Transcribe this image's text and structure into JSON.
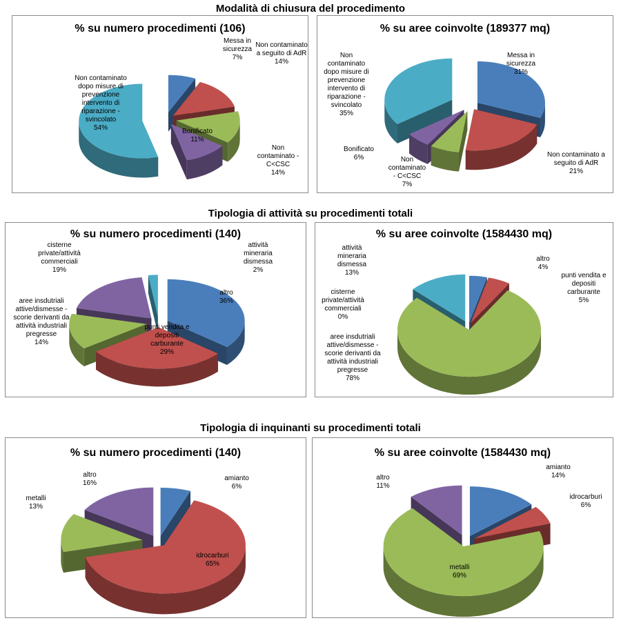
{
  "sections": {
    "s1": "Modalità di chiusura del procedimento",
    "s2": "Tipologia di attività su procedimenti totali",
    "s3": "Tipologia di inquinanti su procedimenti totali"
  },
  "chart_data": [
    {
      "type": "pie",
      "title": "% su numero procedimenti (106)",
      "slices": [
        {
          "label": "Messa in sicurezza",
          "value": 7,
          "pct": "7%",
          "color": "#4a7ebb"
        },
        {
          "label": "Non contaminato a seguito di AdR",
          "value": 14,
          "pct": "14%",
          "color": "#c0504d"
        },
        {
          "label": "Non contaminato - C<CSC",
          "value": 14,
          "pct": "14%",
          "color": "#9bbb59"
        },
        {
          "label": "Bonificato",
          "value": 11,
          "pct": "11%",
          "color": "#8064a2"
        },
        {
          "label": "Non contaminato dopo misure di prevenzione intervento di riparazione - svincolato",
          "value": 54,
          "pct": "54%",
          "color": "#4bacc6"
        }
      ]
    },
    {
      "type": "pie",
      "title": "% su aree coinvolte (189377 mq)",
      "slices": [
        {
          "label": "Messa in sicurezza",
          "value": 31,
          "pct": "31%",
          "color": "#4a7ebb"
        },
        {
          "label": "Non contaminato a seguito di AdR",
          "value": 21,
          "pct": "21%",
          "color": "#c0504d"
        },
        {
          "label": "Non contaminato - C<CSC",
          "value": 7,
          "pct": "7%",
          "color": "#9bbb59"
        },
        {
          "label": "Bonificato",
          "value": 6,
          "pct": "6%",
          "color": "#8064a2"
        },
        {
          "label": "Non contaminato dopo misure di prevenzione intervento di riparazione - svincolato",
          "value": 35,
          "pct": "35%",
          "color": "#4bacc6"
        }
      ]
    },
    {
      "type": "pie",
      "title": "% su numero procedimenti (140)",
      "slices": [
        {
          "label": "altro",
          "value": 36,
          "pct": "36%",
          "color": "#4a7ebb"
        },
        {
          "label": "punti vendita e depositi carburante",
          "value": 29,
          "pct": "29%",
          "color": "#c0504d"
        },
        {
          "label": "aree insdutriali attive/dismesse - scorie derivanti da attività industriali pregresse",
          "value": 14,
          "pct": "14%",
          "color": "#9bbb59"
        },
        {
          "label": "cisterne private/attività commerciali",
          "value": 19,
          "pct": "19%",
          "color": "#8064a2"
        },
        {
          "label": "attività mineraria dismessa",
          "value": 2,
          "pct": "2%",
          "color": "#4bacc6"
        }
      ]
    },
    {
      "type": "pie",
      "title": "% su aree coinvolte (1584430 mq)",
      "slices": [
        {
          "label": "altro",
          "value": 4,
          "pct": "4%",
          "color": "#4a7ebb"
        },
        {
          "label": "punti vendita e depositi carburante",
          "value": 5,
          "pct": "5%",
          "color": "#c0504d"
        },
        {
          "label": "aree insdutriali attive/dismesse - scorie derivanti da attività industriali pregresse",
          "value": 78,
          "pct": "78%",
          "color": "#9bbb59"
        },
        {
          "label": "cisterne private/attività commerciali",
          "value": 0,
          "pct": "0%",
          "color": "#8064a2"
        },
        {
          "label": "attività mineraria dismessa",
          "value": 13,
          "pct": "13%",
          "color": "#4bacc6"
        }
      ]
    },
    {
      "type": "pie",
      "title": "% su numero procedimenti (140)",
      "slices": [
        {
          "label": "amianto",
          "value": 6,
          "pct": "6%",
          "color": "#4a7ebb"
        },
        {
          "label": "idrocarburi",
          "value": 65,
          "pct": "65%",
          "color": "#c0504d"
        },
        {
          "label": "metalli",
          "value": 13,
          "pct": "13%",
          "color": "#9bbb59"
        },
        {
          "label": "altro",
          "value": 16,
          "pct": "16%",
          "color": "#8064a2"
        }
      ]
    },
    {
      "type": "pie",
      "title": "% su aree coinvolte (1584430 mq)",
      "slices": [
        {
          "label": "amianto",
          "value": 14,
          "pct": "14%",
          "color": "#4a7ebb"
        },
        {
          "label": "idrocarburi",
          "value": 6,
          "pct": "6%",
          "color": "#c0504d"
        },
        {
          "label": "metalli",
          "value": 69,
          "pct": "69%",
          "color": "#9bbb59"
        },
        {
          "label": "altro",
          "value": 11,
          "pct": "11%",
          "color": "#8064a2"
        }
      ]
    }
  ]
}
